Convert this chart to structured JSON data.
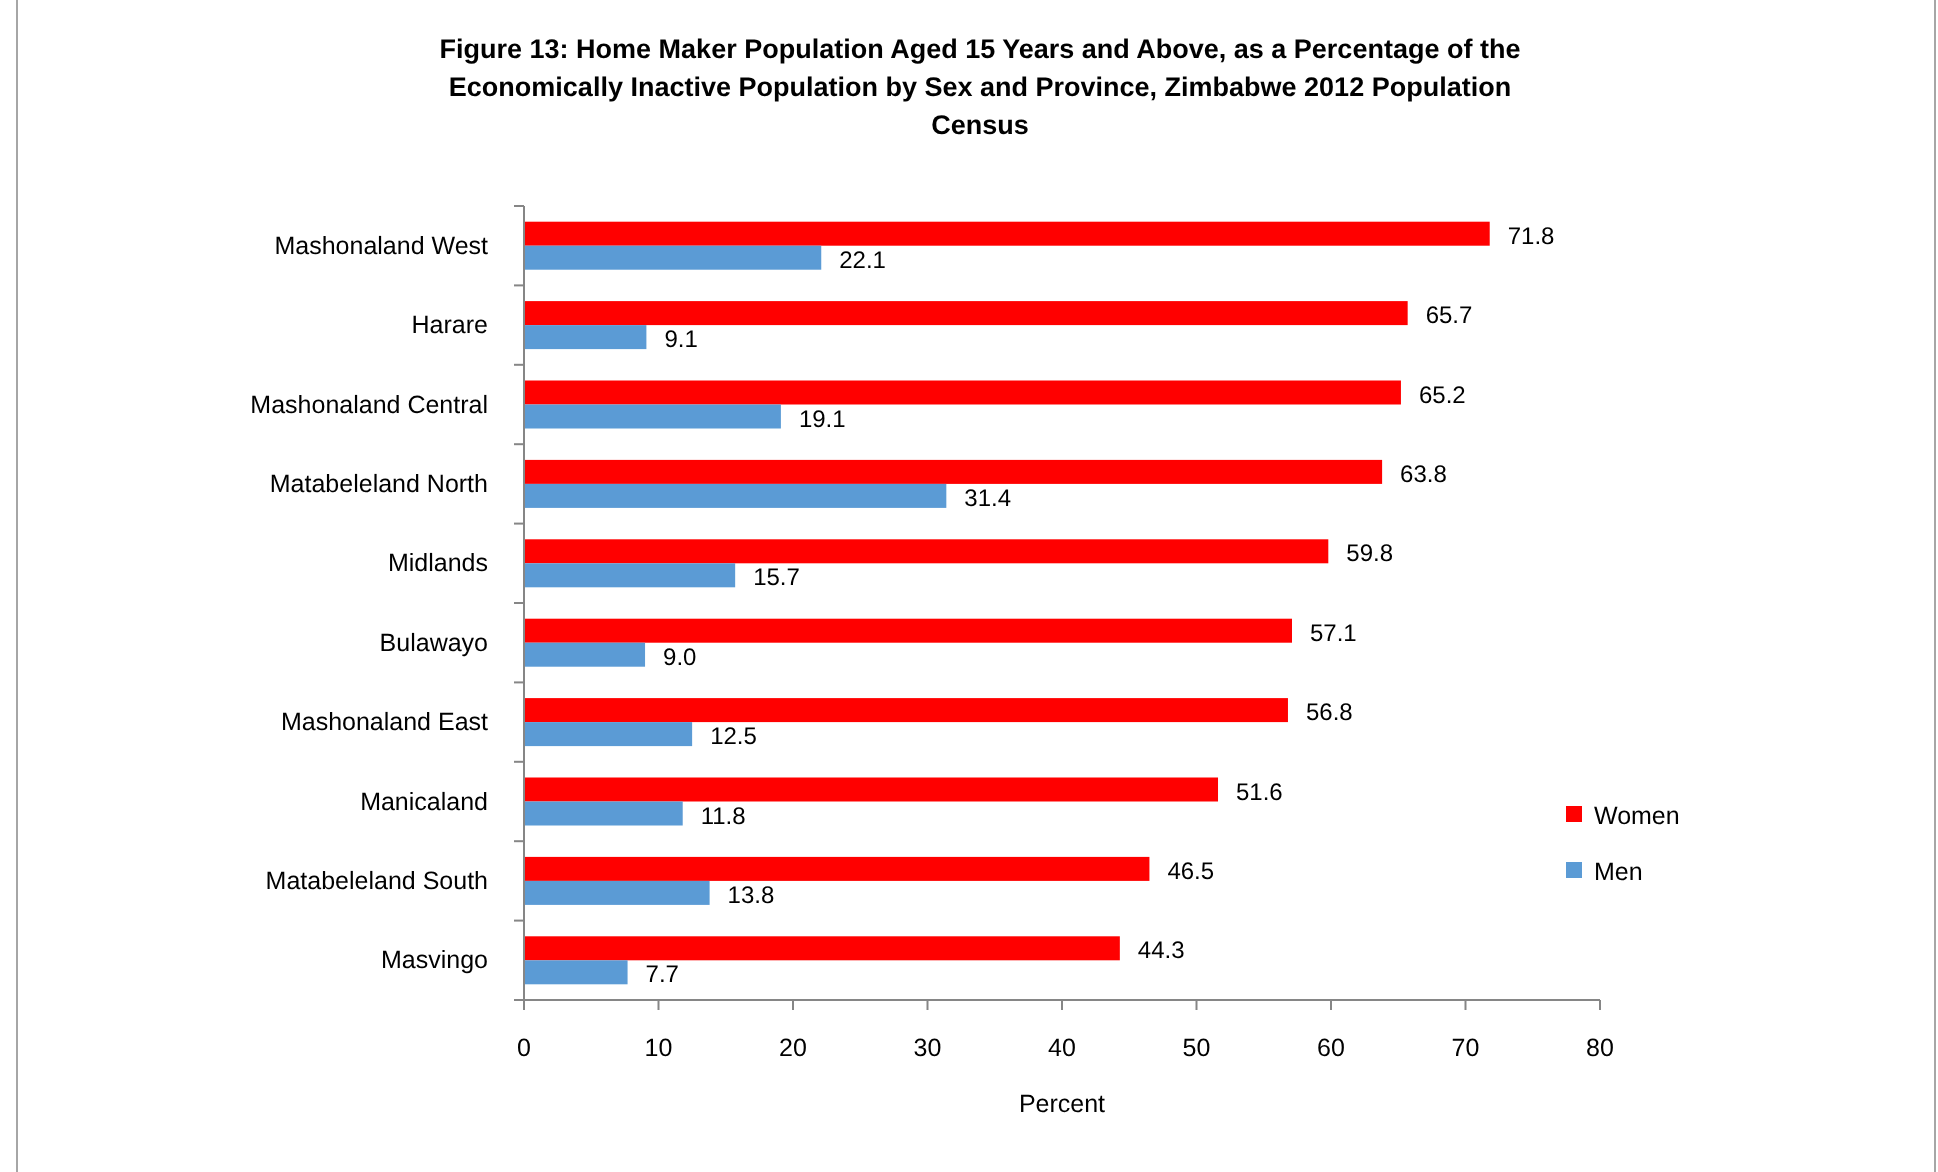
{
  "chart_data": {
    "type": "bar",
    "orientation": "horizontal",
    "title": "Figure 13: Home Maker Population Aged 15 Years and Above, as a Percentage of the Economically Inactive Population by Sex and Province, Zimbabwe 2012 Population Census",
    "xlabel": "Percent",
    "categories": [
      "Mashonaland West",
      "Harare",
      "Mashonaland Central",
      "Matabeleland North",
      "Midlands",
      "Bulawayo",
      "Mashonaland East",
      "Manicaland",
      "Matabeleland South",
      "Masvingo"
    ],
    "series": [
      {
        "name": "Women",
        "color": "#ff0000",
        "values": [
          71.8,
          65.7,
          65.2,
          63.8,
          59.8,
          57.1,
          56.8,
          51.6,
          46.5,
          44.3
        ],
        "value_labels": [
          "71.8",
          "65.7",
          "65.2",
          "63.8",
          "59.8",
          "57.1",
          "56.8",
          "51.6",
          "46.5",
          "44.3"
        ]
      },
      {
        "name": "Men",
        "color": "#5b9bd5",
        "values": [
          22.1,
          9.1,
          19.1,
          31.4,
          15.7,
          9.0,
          12.5,
          11.8,
          13.8,
          7.7
        ],
        "value_labels": [
          "22.1",
          "9.1",
          "19.1",
          "31.4",
          "15.7",
          "9.0",
          "12.5",
          "11.8",
          "13.8",
          "7.7"
        ]
      }
    ],
    "xlim": [
      0,
      80
    ],
    "xticks": [
      0,
      10,
      20,
      30,
      40,
      50,
      60,
      70,
      80
    ],
    "grid": false,
    "legend": "right"
  }
}
